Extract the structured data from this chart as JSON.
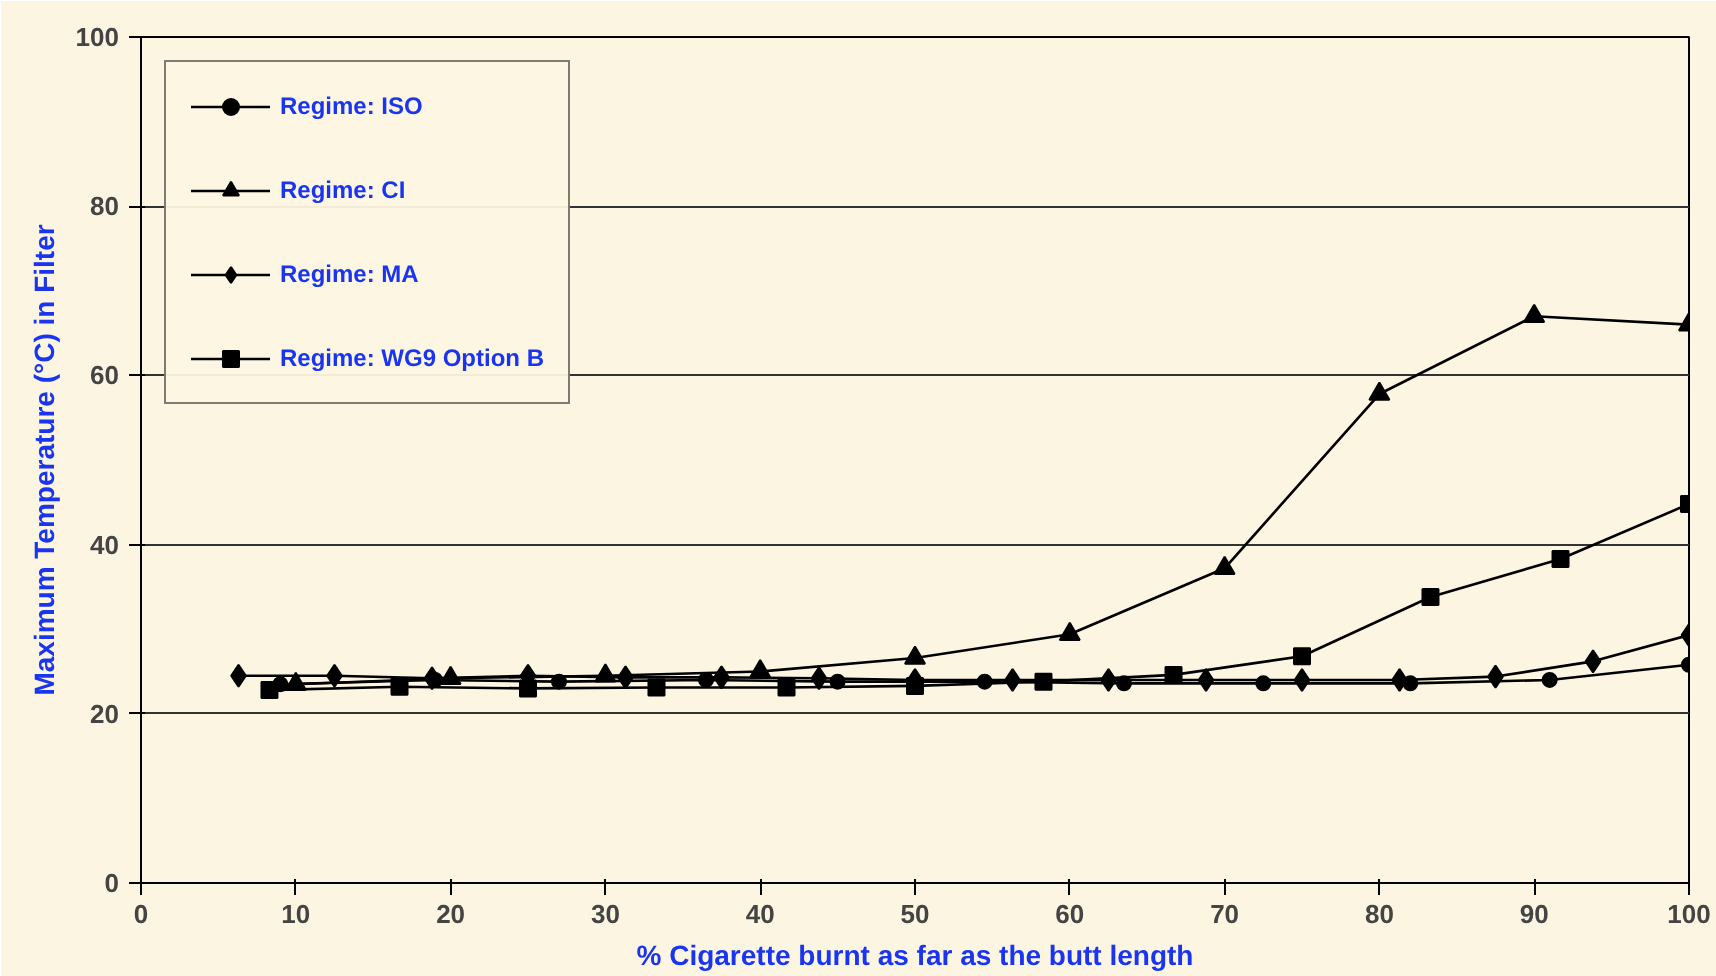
{
  "chart_data": {
    "type": "line",
    "xlabel": "% Cigarette burnt as far as the butt length",
    "ylabel": "Maximum Temperature (°C) in Filter",
    "xlim": [
      0,
      100
    ],
    "xticks": [
      0,
      10,
      20,
      30,
      40,
      50,
      60,
      70,
      80,
      90,
      100
    ],
    "ylim": [
      0,
      100
    ],
    "yticks": [
      0,
      20,
      40,
      60,
      80,
      100
    ],
    "grid": "y",
    "legend": "top left",
    "line_style": "solid",
    "series": [
      {
        "name": "Regime: ISO",
        "color": "#000000",
        "marker": "circle",
        "x": [
          9,
          19,
          27,
          36.5,
          45,
          54.5,
          63.5,
          72.5,
          82,
          91,
          100
        ],
        "values": [
          23.5,
          24,
          23.8,
          24,
          23.8,
          23.8,
          23.6,
          23.6,
          23.6,
          24,
          25.8
        ]
      },
      {
        "name": "Regime: CI",
        "color": "#000000",
        "marker": "triangle",
        "x": [
          10,
          20,
          30,
          40,
          50,
          60,
          70,
          80,
          90,
          100
        ],
        "values": [
          23.5,
          24.2,
          24.5,
          25,
          26.6,
          29.4,
          37.2,
          57.8,
          67,
          66
        ]
      },
      {
        "name": "Regime: MA",
        "color": "#000000",
        "marker": "diamond",
        "x": [
          6.3,
          12.5,
          18.8,
          25,
          31.3,
          37.5,
          43.8,
          50,
          56.3,
          62.5,
          68.8,
          75,
          81.3,
          87.5,
          93.8,
          100
        ],
        "values": [
          24.5,
          24.5,
          24.2,
          24.5,
          24.3,
          24.3,
          24.2,
          24,
          24,
          24,
          24,
          24,
          24,
          24.4,
          26.2,
          29.3
        ]
      },
      {
        "name": "Regime: WG9 Option B",
        "color": "#000000",
        "marker": "square",
        "x": [
          8.3,
          16.7,
          25,
          33.3,
          41.7,
          50,
          58.3,
          66.7,
          75,
          83.3,
          91.7,
          100
        ],
        "values": [
          22.8,
          23.2,
          23,
          23.1,
          23.1,
          23.3,
          23.8,
          24.6,
          26.8,
          33.8,
          38.3,
          44.8
        ]
      }
    ]
  }
}
